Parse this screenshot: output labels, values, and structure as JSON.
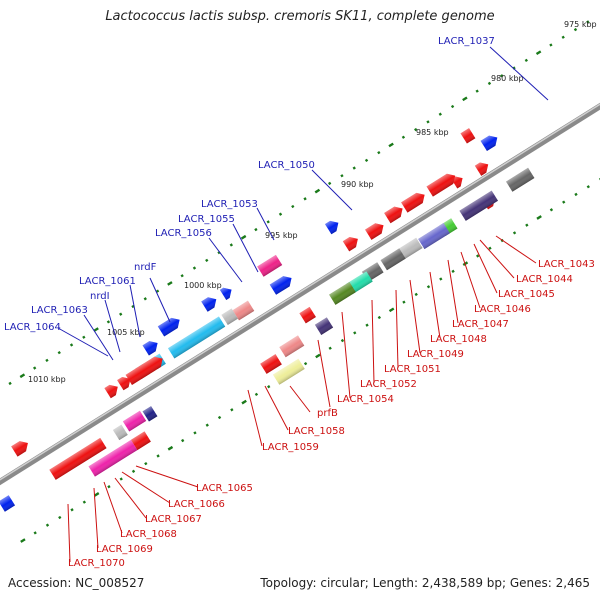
{
  "title": "Lactococcus lactis subsp. cremoris SK11, complete genome",
  "footer": {
    "accession": "Accession: NC_008527",
    "stats": "Topology: circular; Length: 2,438,589 bp; Genes: 2,465"
  },
  "kbp_labels": [
    "975 kbp",
    "980 kbp",
    "985 kbp",
    "990 kbp",
    "995 kbp",
    "1000 kbp",
    "1005 kbp",
    "1010 kbp"
  ],
  "top_labels": [
    "LACR_1037",
    "LACR_1050",
    "LACR_1053",
    "LACR_1055",
    "LACR_1056",
    "LACR_1061",
    "nrdF",
    "nrdI",
    "LACR_1063",
    "LACR_1064"
  ],
  "bottom_labels": [
    "LACR_1043",
    "LACR_1044",
    "LACR_1045",
    "LACR_1046",
    "LACR_1047",
    "LACR_1048",
    "LACR_1049",
    "LACR_1051",
    "LACR_1052",
    "LACR_1054",
    "prfB",
    "LACR_1058",
    "LACR_1059",
    "LACR_1065",
    "LACR_1066",
    "LACR_1067",
    "LACR_1068",
    "LACR_1069",
    "LACR_1070"
  ],
  "colors": {
    "backbone": "#8a8a8a",
    "red_gene": "#ee1111",
    "blue_gene": "#0022ee",
    "grey_gene": "#666666",
    "cyan_gene": "#22bbee",
    "pink_gene": "#ee2288",
    "magenta_gene": "#ee22aa",
    "dark_purple_gene": "#443377",
    "green_gene": "#558822",
    "lime_gene": "#44cc33",
    "mint_gene": "#22ddaa",
    "lavender_gene": "#6666cc",
    "lightgrey_gene": "#bbbbbb",
    "salmon_gene": "#ee8888",
    "yellow_gene": "#eeee99",
    "navy_gene": "#222288",
    "tick_green": "#1a7a1a",
    "label_blue": "#1f1fb4",
    "label_red": "#cc1111"
  }
}
